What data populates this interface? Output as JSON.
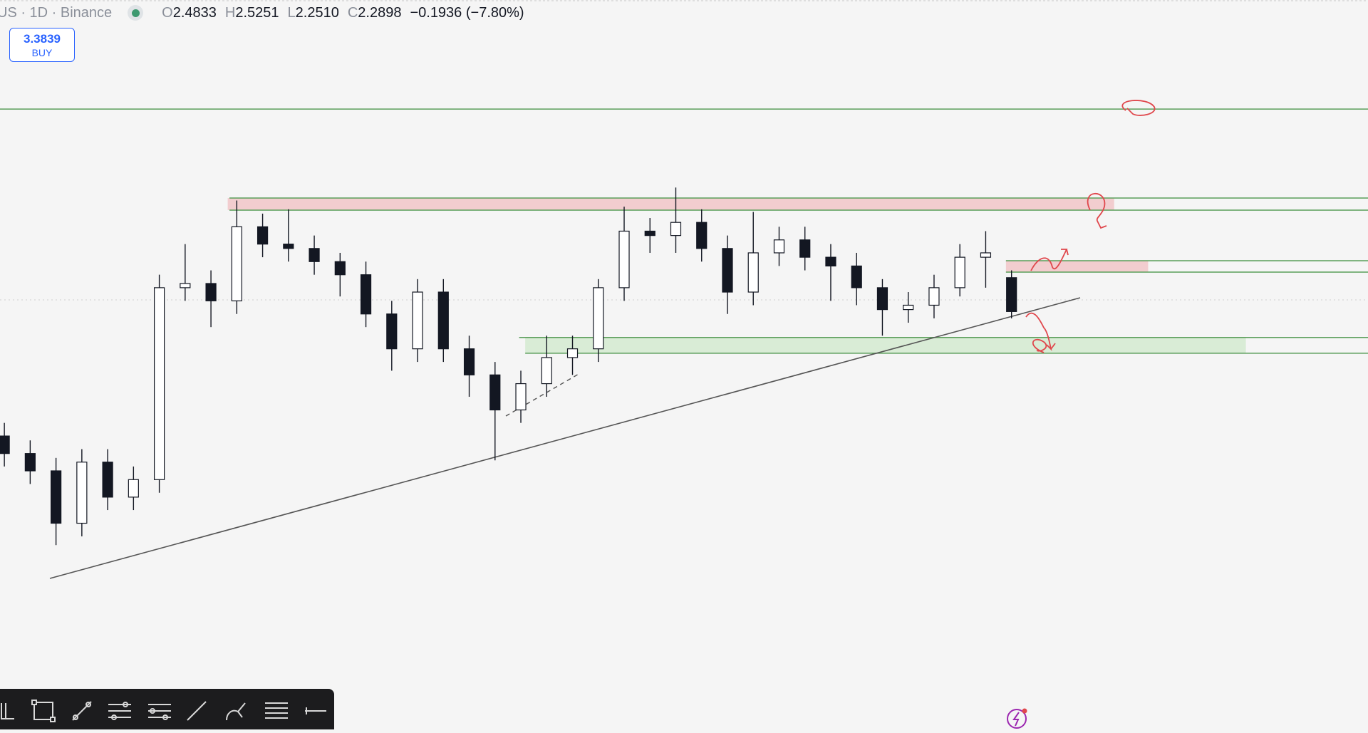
{
  "header": {
    "symbol": "US · 1D · Binance",
    "ohlc": [
      {
        "key": "O",
        "value": "2.4833"
      },
      {
        "key": "H",
        "value": "2.5251"
      },
      {
        "key": "L",
        "value": "2.2510"
      },
      {
        "key": "C",
        "value": "2.2898"
      }
    ],
    "change": "−0.1936 (−7.80%)"
  },
  "buy_button": {
    "price": "3.3839",
    "label": "BUY"
  },
  "chart_data": {
    "type": "candlestick",
    "ylim": [
      0.184,
      4.069
    ],
    "up_color": "#ffffff",
    "down_color": "#131722",
    "candles": [
      [
        1.579,
        1.654,
        1.405,
        1.479
      ],
      [
        1.479,
        1.554,
        1.305,
        1.38
      ],
      [
        1.38,
        1.454,
        0.956,
        1.081
      ],
      [
        1.081,
        1.504,
        1.006,
        1.43
      ],
      [
        1.43,
        1.504,
        1.156,
        1.23
      ],
      [
        1.23,
        1.405,
        1.156,
        1.33
      ],
      [
        1.33,
        2.5,
        1.255,
        2.426
      ],
      [
        2.426,
        2.675,
        2.351,
        2.45
      ],
      [
        2.45,
        2.525,
        2.201,
        2.351
      ],
      [
        2.351,
        2.924,
        2.276,
        2.774
      ],
      [
        2.774,
        2.849,
        2.6,
        2.675
      ],
      [
        2.675,
        2.874,
        2.575,
        2.65
      ],
      [
        2.65,
        2.724,
        2.5,
        2.575
      ],
      [
        2.575,
        2.625,
        2.376,
        2.5
      ],
      [
        2.5,
        2.575,
        2.201,
        2.276
      ],
      [
        2.276,
        2.351,
        1.952,
        2.077
      ],
      [
        2.077,
        2.475,
        2.002,
        2.401
      ],
      [
        2.401,
        2.475,
        2.002,
        2.077
      ],
      [
        2.077,
        2.152,
        1.803,
        1.928
      ],
      [
        1.928,
        2.002,
        1.44,
        1.728
      ],
      [
        1.728,
        1.952,
        1.654,
        1.878
      ],
      [
        1.878,
        2.152,
        1.803,
        2.027
      ],
      [
        2.027,
        2.152,
        1.928,
        2.077
      ],
      [
        2.077,
        2.475,
        2.002,
        2.426
      ],
      [
        2.426,
        2.889,
        2.351,
        2.749
      ],
      [
        2.749,
        2.824,
        2.625,
        2.724
      ],
      [
        2.724,
        2.998,
        2.625,
        2.799
      ],
      [
        2.799,
        2.874,
        2.575,
        2.65
      ],
      [
        2.65,
        2.724,
        2.276,
        2.401
      ],
      [
        2.401,
        2.859,
        2.326,
        2.625
      ],
      [
        2.625,
        2.774,
        2.55,
        2.699
      ],
      [
        2.699,
        2.774,
        2.525,
        2.6
      ],
      [
        2.6,
        2.675,
        2.351,
        2.55
      ],
      [
        2.55,
        2.625,
        2.326,
        2.426
      ],
      [
        2.426,
        2.475,
        2.152,
        2.301
      ],
      [
        2.301,
        2.401,
        2.226,
        2.326
      ],
      [
        2.326,
        2.5,
        2.251,
        2.426
      ],
      [
        2.426,
        2.675,
        2.376,
        2.6
      ],
      [
        2.6,
        2.749,
        2.426,
        2.625
      ],
      [
        2.4833,
        2.5251,
        2.251,
        2.2898
      ]
    ],
    "levels": [
      {
        "value": 3.446,
        "color": "#5a9e5a"
      },
      {
        "value": 2.938,
        "color": "#5a9e5a"
      },
      {
        "value": 2.869,
        "color": "#5a9e5a"
      },
      {
        "value": 2.58,
        "color": "#5a9e5a"
      },
      {
        "value": 2.515,
        "color": "#5a9e5a"
      },
      {
        "value": 2.142,
        "color": "#5a9e5a"
      },
      {
        "value": 2.052,
        "color": "#5a9e5a"
      }
    ],
    "zones": [
      {
        "values": [
          2.938,
          2.869
        ],
        "color": "#f2c9cb"
      },
      {
        "values": [
          2.58,
          2.515
        ],
        "color": "#f2c9cb"
      },
      {
        "values": [
          2.142,
          2.052
        ],
        "color": "#d6ebd3"
      }
    ]
  }
}
